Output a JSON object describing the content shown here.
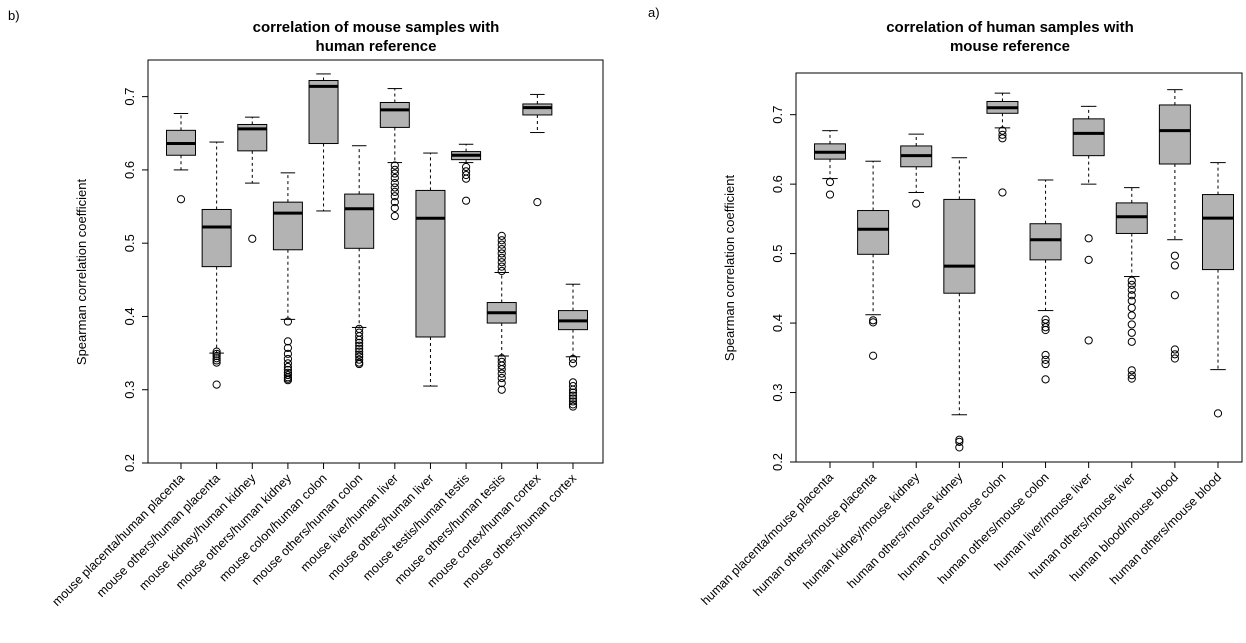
{
  "chart_data": [
    {
      "type": "boxplot",
      "panel_label": "b)",
      "title_lines": [
        "correlation of mouse samples with",
        "human reference"
      ],
      "ylabel": "Spearman correlation coefficient",
      "ylim": [
        0.2,
        0.75
      ],
      "yticks": [
        0.2,
        0.3,
        0.4,
        0.5,
        0.6,
        0.7
      ],
      "ytick_labels": [
        "0.2",
        "0.3",
        "0.4",
        "0.5",
        "0.6",
        "0.7"
      ],
      "categories": [
        "mouse placenta/human placenta",
        "mouse others/human placenta",
        "mouse kidney/human kidney",
        "mouse others/human kidney",
        "mouse colon/human colon",
        "mouse others/human colon",
        "mouse liver/human liver",
        "mouse others/human liver",
        "mouse testis/human testis",
        "mouse others/human testis",
        "mouse cortex/human cortex",
        "mouse others/human cortex"
      ],
      "boxes": [
        {
          "whisker_low": 0.6,
          "q1": 0.62,
          "median": 0.636,
          "q3": 0.654,
          "whisker_high": 0.677,
          "outliers": [
            0.56
          ]
        },
        {
          "whisker_low": 0.35,
          "q1": 0.468,
          "median": 0.522,
          "q3": 0.546,
          "whisker_high": 0.638,
          "outliers": [
            0.352,
            0.349,
            0.346,
            0.343,
            0.34,
            0.337,
            0.307
          ]
        },
        {
          "whisker_low": 0.582,
          "q1": 0.626,
          "median": 0.656,
          "q3": 0.662,
          "whisker_high": 0.672,
          "outliers": [
            0.506
          ]
        },
        {
          "whisker_low": 0.396,
          "q1": 0.491,
          "median": 0.541,
          "q3": 0.556,
          "whisker_high": 0.596,
          "outliers": [
            0.393,
            0.366,
            0.357,
            0.349,
            0.342,
            0.336,
            0.331,
            0.327,
            0.323,
            0.32,
            0.317,
            0.315,
            0.313
          ]
        },
        {
          "whisker_low": 0.544,
          "q1": 0.636,
          "median": 0.714,
          "q3": 0.722,
          "whisker_high": 0.731,
          "outliers": []
        },
        {
          "whisker_low": 0.385,
          "q1": 0.493,
          "median": 0.547,
          "q3": 0.567,
          "whisker_high": 0.633,
          "outliers": [
            0.383,
            0.378,
            0.373,
            0.368,
            0.364,
            0.36,
            0.356,
            0.352,
            0.348,
            0.345,
            0.341,
            0.337,
            0.335
          ]
        },
        {
          "whisker_low": 0.61,
          "q1": 0.658,
          "median": 0.682,
          "q3": 0.692,
          "whisker_high": 0.711,
          "outliers": [
            0.606,
            0.6,
            0.595,
            0.589,
            0.582,
            0.576,
            0.57,
            0.564,
            0.556,
            0.548,
            0.537
          ]
        },
        {
          "whisker_low": 0.305,
          "q1": 0.372,
          "median": 0.534,
          "q3": 0.572,
          "whisker_high": 0.623,
          "outliers": []
        },
        {
          "whisker_low": 0.61,
          "q1": 0.614,
          "median": 0.62,
          "q3": 0.625,
          "whisker_high": 0.635,
          "outliers": [
            0.604,
            0.598,
            0.593,
            0.588,
            0.558
          ]
        },
        {
          "whisker_low": 0.346,
          "q1": 0.391,
          "median": 0.405,
          "q3": 0.419,
          "whisker_high": 0.46,
          "outliers": [
            0.51,
            0.504,
            0.498,
            0.492,
            0.486,
            0.48,
            0.474,
            0.468,
            0.462,
            0.343,
            0.338,
            0.333,
            0.328,
            0.322,
            0.316,
            0.309,
            0.3
          ]
        },
        {
          "whisker_low": 0.651,
          "q1": 0.675,
          "median": 0.685,
          "q3": 0.69,
          "whisker_high": 0.703,
          "outliers": [
            0.556
          ]
        },
        {
          "whisker_low": 0.345,
          "q1": 0.382,
          "median": 0.394,
          "q3": 0.408,
          "whisker_high": 0.444,
          "outliers": [
            0.342,
            0.336,
            0.31,
            0.305,
            0.3,
            0.296,
            0.292,
            0.288,
            0.284,
            0.28,
            0.277
          ]
        }
      ]
    },
    {
      "type": "boxplot",
      "panel_label": "a)",
      "title_lines": [
        "correlation of human samples with",
        "mouse reference"
      ],
      "ylabel": "Spearman correlation coefficient",
      "ylim": [
        0.2,
        0.76
      ],
      "yticks": [
        0.2,
        0.3,
        0.4,
        0.5,
        0.6,
        0.7
      ],
      "ytick_labels": [
        "0.2",
        "0.3",
        "0.4",
        "0.5",
        "0.6",
        "0.7"
      ],
      "categories": [
        "human placenta/mouse placenta",
        "human others/mouse placenta",
        "human kidney/mouse kidney",
        "human others/mouse kidney",
        "human colon/mouse colon",
        "human others/mouse colon",
        "human liver/mouse liver",
        "human others/mouse liver",
        "human blood/mouse blood",
        "human others/mouse blood"
      ],
      "boxes": [
        {
          "whisker_low": 0.608,
          "q1": 0.636,
          "median": 0.646,
          "q3": 0.658,
          "whisker_high": 0.677,
          "outliers": [
            0.603,
            0.585
          ]
        },
        {
          "whisker_low": 0.412,
          "q1": 0.499,
          "median": 0.535,
          "q3": 0.562,
          "whisker_high": 0.633,
          "outliers": [
            0.404,
            0.401,
            0.353
          ]
        },
        {
          "whisker_low": 0.588,
          "q1": 0.625,
          "median": 0.641,
          "q3": 0.655,
          "whisker_high": 0.672,
          "outliers": [
            0.572
          ]
        },
        {
          "whisker_low": 0.268,
          "q1": 0.443,
          "median": 0.482,
          "q3": 0.578,
          "whisker_high": 0.638,
          "outliers": [
            0.232,
            0.229,
            0.221
          ]
        },
        {
          "whisker_low": 0.681,
          "q1": 0.702,
          "median": 0.71,
          "q3": 0.719,
          "whisker_high": 0.731,
          "outliers": [
            0.677,
            0.671,
            0.666,
            0.588
          ]
        },
        {
          "whisker_low": 0.418,
          "q1": 0.491,
          "median": 0.52,
          "q3": 0.543,
          "whisker_high": 0.606,
          "outliers": [
            0.405,
            0.4,
            0.394,
            0.39,
            0.354,
            0.347,
            0.341,
            0.319
          ]
        },
        {
          "whisker_low": 0.6,
          "q1": 0.641,
          "median": 0.673,
          "q3": 0.694,
          "whisker_high": 0.712,
          "outliers": [
            0.522,
            0.491,
            0.375
          ]
        },
        {
          "whisker_low": 0.467,
          "q1": 0.529,
          "median": 0.553,
          "q3": 0.573,
          "whisker_high": 0.595,
          "outliers": [
            0.461,
            0.455,
            0.448,
            0.44,
            0.432,
            0.422,
            0.411,
            0.398,
            0.386,
            0.373,
            0.332,
            0.325,
            0.32
          ]
        },
        {
          "whisker_low": 0.52,
          "q1": 0.629,
          "median": 0.677,
          "q3": 0.714,
          "whisker_high": 0.736,
          "outliers": [
            0.497,
            0.483,
            0.44,
            0.362,
            0.355,
            0.349
          ]
        },
        {
          "whisker_low": 0.333,
          "q1": 0.477,
          "median": 0.551,
          "q3": 0.585,
          "whisker_high": 0.631,
          "outliers": [
            0.27
          ]
        }
      ]
    }
  ],
  "colors": {
    "box_fill": "#b3b3b3",
    "stroke": "#000000",
    "background": "#ffffff"
  }
}
